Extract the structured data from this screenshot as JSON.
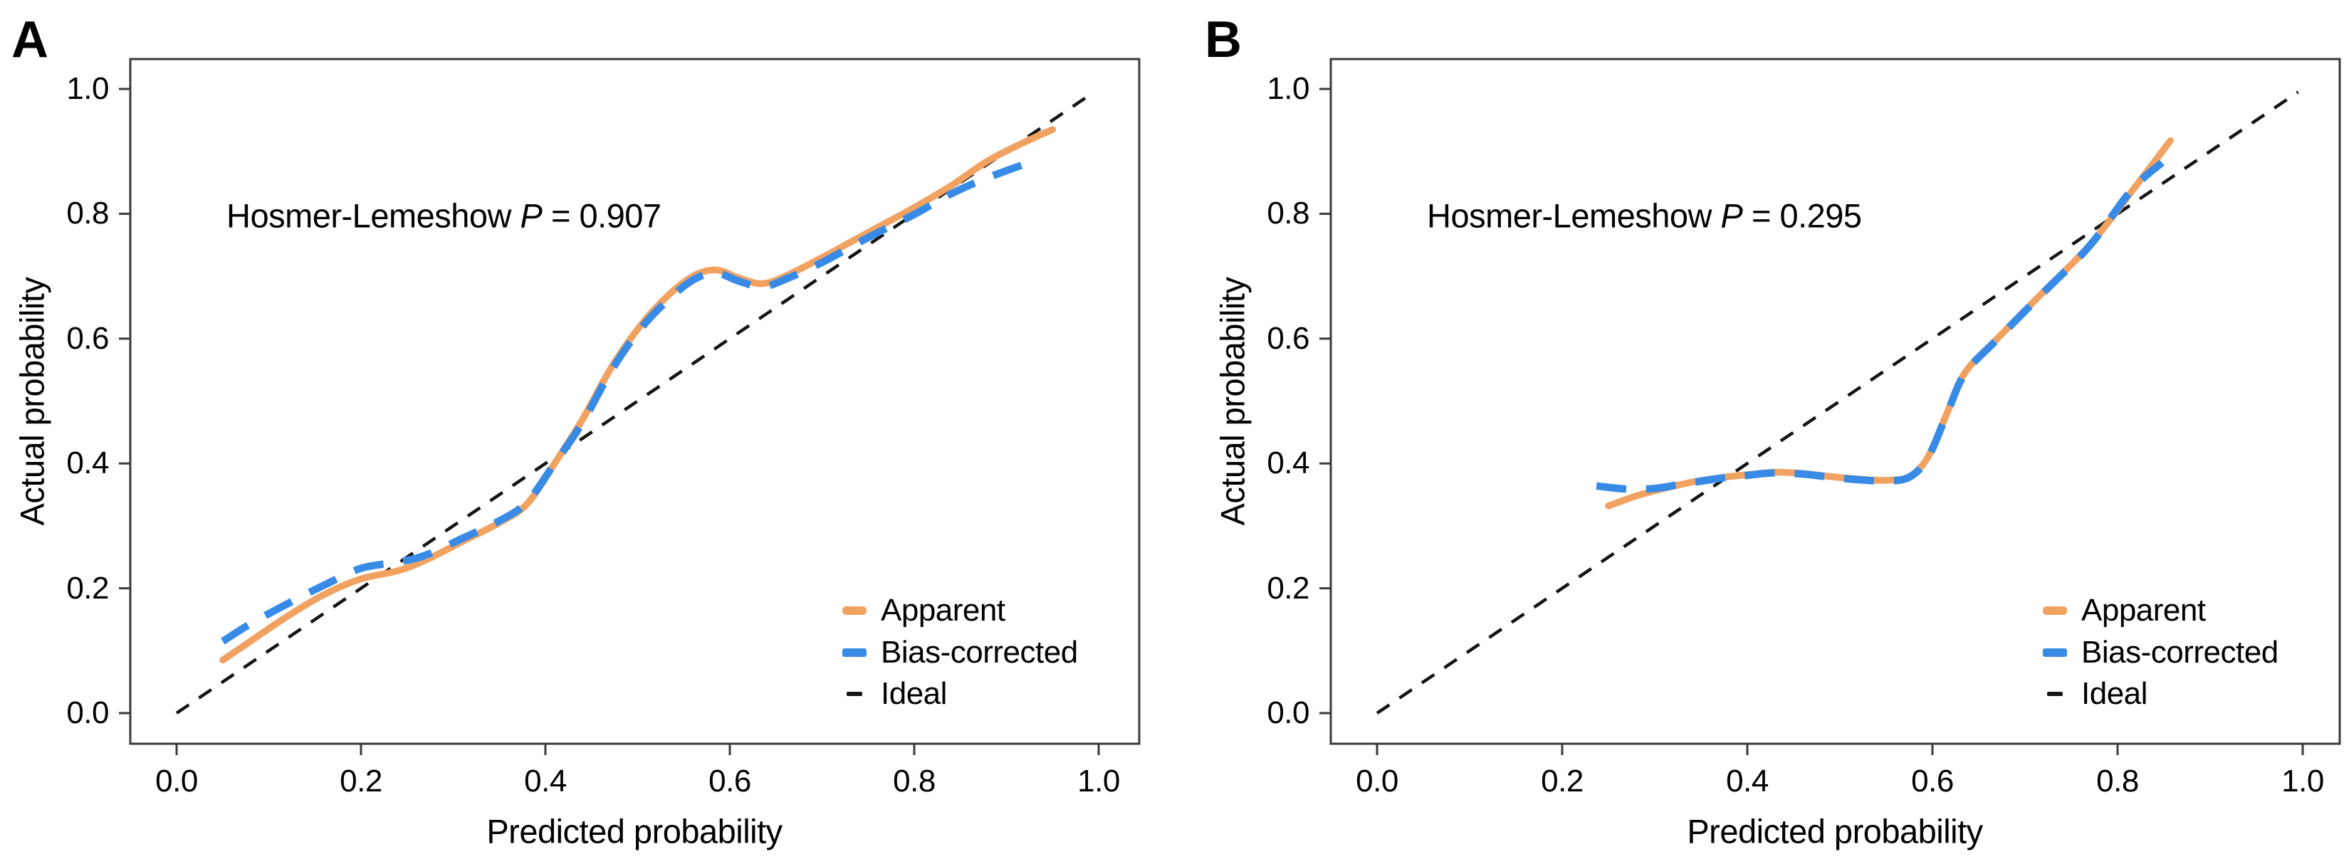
{
  "figure": {
    "background": "#ffffff",
    "panels": [
      "A",
      "B"
    ]
  },
  "colors": {
    "apparent": "#F1A261",
    "bias_corrected": "#378BE7",
    "ideal": "#141414",
    "spine": "#3a3a3a",
    "text": "#000000"
  },
  "chart_data": [
    {
      "id": "A",
      "type": "line",
      "panel_label": "A",
      "annotation": {
        "full": "Hosmer-Lemeshow P = 0.907",
        "prefix": "Hosmer-Lemeshow ",
        "stat": "P",
        "suffix": " = 0.907",
        "p_value": 0.907
      },
      "xlabel": "Predicted probability",
      "ylabel": "Actual probability",
      "xlim": [
        0.0,
        1.0
      ],
      "ylim": [
        0.0,
        1.0
      ],
      "xticks": [
        "0.0",
        "0.2",
        "0.4",
        "0.6",
        "0.8",
        "1.0"
      ],
      "yticks": [
        "0.0",
        "0.2",
        "0.4",
        "0.6",
        "0.8",
        "1.0"
      ],
      "grid": false,
      "legend": {
        "position": "lower right",
        "entries": [
          {
            "label": "Apparent",
            "color": "#F1A261",
            "line_style": "solid"
          },
          {
            "label": "Bias-corrected",
            "color": "#378BE7",
            "line_style": "dashed"
          },
          {
            "label": "Ideal",
            "color": "#141414",
            "line_style": "dashed_small"
          }
        ]
      },
      "series": [
        {
          "name": "Ideal",
          "style": "dashed_small",
          "color": "#141414",
          "points": [
            [
              0.0,
              0.0
            ],
            [
              0.995,
              0.995
            ]
          ]
        },
        {
          "name": "Apparent",
          "style": "solid",
          "color": "#F1A261",
          "points": [
            [
              0.05,
              0.085
            ],
            [
              0.08,
              0.115
            ],
            [
              0.12,
              0.155
            ],
            [
              0.16,
              0.19
            ],
            [
              0.2,
              0.215
            ],
            [
              0.24,
              0.228
            ],
            [
              0.27,
              0.245
            ],
            [
              0.31,
              0.275
            ],
            [
              0.35,
              0.305
            ],
            [
              0.38,
              0.335
            ],
            [
              0.41,
              0.4
            ],
            [
              0.44,
              0.47
            ],
            [
              0.47,
              0.55
            ],
            [
              0.5,
              0.615
            ],
            [
              0.53,
              0.665
            ],
            [
              0.56,
              0.7
            ],
            [
              0.585,
              0.71
            ],
            [
              0.61,
              0.697
            ],
            [
              0.635,
              0.688
            ],
            [
              0.66,
              0.7
            ],
            [
              0.7,
              0.73
            ],
            [
              0.75,
              0.77
            ],
            [
              0.8,
              0.81
            ],
            [
              0.84,
              0.845
            ],
            [
              0.88,
              0.885
            ],
            [
              0.92,
              0.915
            ],
            [
              0.95,
              0.935
            ]
          ]
        },
        {
          "name": "Bias-corrected",
          "style": "dashed",
          "color": "#378BE7",
          "points": [
            [
              0.05,
              0.115
            ],
            [
              0.08,
              0.143
            ],
            [
              0.12,
              0.175
            ],
            [
              0.16,
              0.205
            ],
            [
              0.2,
              0.232
            ],
            [
              0.24,
              0.242
            ],
            [
              0.27,
              0.253
            ],
            [
              0.31,
              0.28
            ],
            [
              0.35,
              0.308
            ],
            [
              0.38,
              0.338
            ],
            [
              0.41,
              0.4
            ],
            [
              0.44,
              0.465
            ],
            [
              0.47,
              0.545
            ],
            [
              0.5,
              0.61
            ],
            [
              0.53,
              0.658
            ],
            [
              0.56,
              0.694
            ],
            [
              0.585,
              0.705
            ],
            [
              0.61,
              0.692
            ],
            [
              0.635,
              0.683
            ],
            [
              0.66,
              0.695
            ],
            [
              0.7,
              0.722
            ],
            [
              0.75,
              0.762
            ],
            [
              0.8,
              0.799
            ],
            [
              0.84,
              0.832
            ],
            [
              0.88,
              0.858
            ],
            [
              0.93,
              0.885
            ]
          ]
        }
      ]
    },
    {
      "id": "B",
      "type": "line",
      "panel_label": "B",
      "annotation": {
        "full": "Hosmer-Lemeshow P = 0.295",
        "prefix": "Hosmer-Lemeshow ",
        "stat": "P",
        "suffix": " = 0.295",
        "p_value": 0.295
      },
      "xlabel": "Predicted probability",
      "ylabel": "Actual probability",
      "xlim": [
        0.0,
        1.0
      ],
      "ylim": [
        0.0,
        1.0
      ],
      "xticks": [
        "0.0",
        "0.2",
        "0.4",
        "0.6",
        "0.8",
        "1.0"
      ],
      "yticks": [
        "0.0",
        "0.2",
        "0.4",
        "0.6",
        "0.8",
        "1.0"
      ],
      "grid": false,
      "legend": {
        "position": "lower right",
        "entries": [
          {
            "label": "Apparent",
            "color": "#F1A261",
            "line_style": "solid"
          },
          {
            "label": "Bias-corrected",
            "color": "#378BE7",
            "line_style": "dashed"
          },
          {
            "label": "Ideal",
            "color": "#141414",
            "line_style": "dashed_small"
          }
        ]
      },
      "series": [
        {
          "name": "Ideal",
          "style": "dashed_small",
          "color": "#141414",
          "points": [
            [
              0.0,
              0.0
            ],
            [
              0.995,
              0.995
            ]
          ]
        },
        {
          "name": "Apparent",
          "style": "solid",
          "color": "#F1A261",
          "points": [
            [
              0.25,
              0.332
            ],
            [
              0.28,
              0.348
            ],
            [
              0.31,
              0.36
            ],
            [
              0.34,
              0.37
            ],
            [
              0.37,
              0.377
            ],
            [
              0.4,
              0.382
            ],
            [
              0.43,
              0.386
            ],
            [
              0.46,
              0.384
            ],
            [
              0.49,
              0.379
            ],
            [
              0.52,
              0.375
            ],
            [
              0.55,
              0.373
            ],
            [
              0.575,
              0.379
            ],
            [
              0.595,
              0.41
            ],
            [
              0.615,
              0.478
            ],
            [
              0.635,
              0.545
            ],
            [
              0.67,
              0.6
            ],
            [
              0.72,
              0.675
            ],
            [
              0.77,
              0.75
            ],
            [
              0.82,
              0.845
            ],
            [
              0.857,
              0.917
            ]
          ]
        },
        {
          "name": "Bias-corrected",
          "style": "dashed",
          "color": "#378BE7",
          "points": [
            [
              0.237,
              0.364
            ],
            [
              0.27,
              0.359
            ],
            [
              0.3,
              0.36
            ],
            [
              0.33,
              0.367
            ],
            [
              0.37,
              0.376
            ],
            [
              0.4,
              0.381
            ],
            [
              0.43,
              0.385
            ],
            [
              0.46,
              0.383
            ],
            [
              0.49,
              0.378
            ],
            [
              0.52,
              0.374
            ],
            [
              0.55,
              0.372
            ],
            [
              0.575,
              0.378
            ],
            [
              0.595,
              0.409
            ],
            [
              0.615,
              0.477
            ],
            [
              0.635,
              0.544
            ],
            [
              0.67,
              0.599
            ],
            [
              0.72,
              0.674
            ],
            [
              0.77,
              0.749
            ],
            [
              0.815,
              0.838
            ],
            [
              0.848,
              0.882
            ]
          ]
        }
      ]
    }
  ]
}
